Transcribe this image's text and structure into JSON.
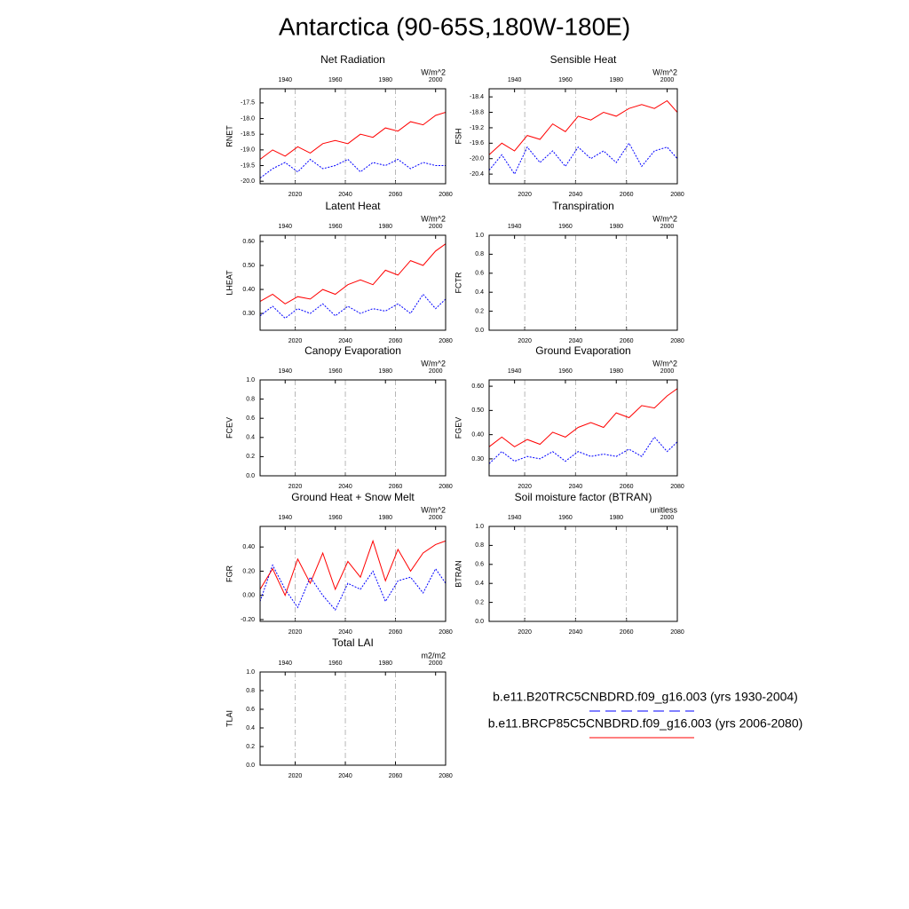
{
  "title": "Antarctica (90-65S,180W-180E)",
  "legend": [
    {
      "label": "b.e11.B20TRC5CNBDRD.f09_g16.003 (yrs 1930-2004)",
      "color": "#0000ff",
      "line_style": "dashed"
    },
    {
      "label": "b.e11.BRCP85C5CNBDRD.f09_g16.003 (yrs 2006-2080)",
      "color": "#ff0000",
      "line_style": "solid"
    }
  ],
  "chart_data": [
    {
      "type": "line",
      "title": "Net Radiation",
      "y_label": "RNET",
      "units": "W/m^2",
      "xlim": [
        2006,
        2080
      ],
      "xticks": [
        2020,
        2040,
        2060,
        2080
      ],
      "x2lim": [
        1930,
        2004
      ],
      "x2ticks": [
        1940,
        1960,
        1980,
        2000
      ],
      "ylim": [
        -20.08,
        -17.05
      ],
      "yticks": [
        -17.5,
        {
          "value": -18.0,
          "label": "-18.0"
        },
        -18.5,
        {
          "value": -19.0,
          "label": "-19.0"
        },
        -19.5,
        {
          "value": -20.0,
          "label": "-20.0"
        }
      ],
      "grid": true,
      "series": [
        {
          "color": "#0000ff",
          "line_style": "dashed",
          "axis": "x2",
          "x": [
            1930,
            1935,
            1940,
            1945,
            1950,
            1955,
            1960,
            1965,
            1970,
            1975,
            1980,
            1985,
            1990,
            1995,
            2000,
            2004
          ],
          "values": [
            -19.9,
            -19.6,
            -19.4,
            -19.7,
            -19.3,
            -19.6,
            -19.5,
            -19.3,
            -19.7,
            -19.4,
            -19.5,
            -19.3,
            -19.6,
            -19.4,
            -19.5,
            -19.5
          ]
        },
        {
          "color": "#ff0000",
          "line_style": "solid",
          "x": [
            2006,
            2011,
            2016,
            2021,
            2026,
            2031,
            2036,
            2041,
            2046,
            2051,
            2056,
            2061,
            2066,
            2071,
            2076,
            2080
          ],
          "values": [
            -19.3,
            -19.0,
            -19.2,
            -18.9,
            -19.1,
            -18.8,
            -18.7,
            -18.8,
            -18.5,
            -18.6,
            -18.3,
            -18.4,
            -18.1,
            -18.2,
            -17.9,
            -17.8
          ]
        }
      ]
    },
    {
      "type": "line",
      "title": "Sensible Heat",
      "y_label": "FSH",
      "units": "W/m^2",
      "xlim": [
        2006,
        2080
      ],
      "xticks": [
        2020,
        2040,
        2060,
        2080
      ],
      "x2lim": [
        1930,
        2004
      ],
      "x2ticks": [
        1940,
        1960,
        1980,
        2000
      ],
      "ylim": [
        -20.65,
        -18.19
      ],
      "yticks": [
        -18.4,
        -18.8,
        -19.2,
        -19.6,
        {
          "value": -20.0,
          "label": "-20.0"
        },
        -20.4
      ],
      "grid": true,
      "series": [
        {
          "color": "#0000ff",
          "line_style": "dashed",
          "axis": "x2",
          "x": [
            1930,
            1935,
            1940,
            1945,
            1950,
            1955,
            1960,
            1965,
            1970,
            1975,
            1980,
            1985,
            1990,
            1995,
            2000,
            2004
          ],
          "values": [
            -20.3,
            -19.9,
            -20.4,
            -19.7,
            -20.1,
            -19.8,
            -20.2,
            -19.7,
            -20.0,
            -19.8,
            -20.1,
            -19.6,
            -20.2,
            -19.8,
            -19.7,
            -20.0
          ]
        },
        {
          "color": "#ff0000",
          "line_style": "solid",
          "x": [
            2006,
            2011,
            2016,
            2021,
            2026,
            2031,
            2036,
            2041,
            2046,
            2051,
            2056,
            2061,
            2066,
            2071,
            2076,
            2080
          ],
          "values": [
            -19.9,
            -19.6,
            -19.8,
            -19.4,
            -19.5,
            -19.1,
            -19.3,
            -18.9,
            -19.0,
            -18.8,
            -18.9,
            -18.7,
            -18.6,
            -18.7,
            -18.5,
            -18.8
          ]
        }
      ]
    },
    {
      "type": "line",
      "title": "Latent Heat",
      "y_label": "LHEAT",
      "units": "W/m^2",
      "xlim": [
        2006,
        2080
      ],
      "xticks": [
        2020,
        2040,
        2060,
        2080
      ],
      "x2lim": [
        1930,
        2004
      ],
      "x2ticks": [
        1940,
        1960,
        1980,
        2000
      ],
      "ylim": [
        0.23,
        0.626
      ],
      "yticks": [
        {
          "value": 0.6,
          "label": "0.60"
        },
        {
          "value": 0.5,
          "label": "0.50"
        },
        {
          "value": 0.4,
          "label": "0.40"
        },
        {
          "value": 0.3,
          "label": "0.30"
        }
      ],
      "grid": true,
      "series": [
        {
          "color": "#0000ff",
          "line_style": "dashed",
          "axis": "x2",
          "x": [
            1930,
            1935,
            1940,
            1945,
            1950,
            1955,
            1960,
            1965,
            1970,
            1975,
            1980,
            1985,
            1990,
            1995,
            2000,
            2004
          ],
          "values": [
            0.29,
            0.33,
            0.28,
            0.32,
            0.3,
            0.34,
            0.29,
            0.33,
            0.3,
            0.32,
            0.31,
            0.34,
            0.3,
            0.38,
            0.32,
            0.36
          ]
        },
        {
          "color": "#ff0000",
          "line_style": "solid",
          "x": [
            2006,
            2011,
            2016,
            2021,
            2026,
            2031,
            2036,
            2041,
            2046,
            2051,
            2056,
            2061,
            2066,
            2071,
            2076,
            2080
          ],
          "values": [
            0.35,
            0.38,
            0.34,
            0.37,
            0.36,
            0.4,
            0.38,
            0.42,
            0.44,
            0.42,
            0.48,
            0.46,
            0.52,
            0.5,
            0.56,
            0.59
          ]
        }
      ]
    },
    {
      "type": "line",
      "title": "Transpiration",
      "y_label": "FCTR",
      "units": "W/m^2",
      "xlim": [
        2006,
        2080
      ],
      "xticks": [
        2020,
        2040,
        2060,
        2080
      ],
      "x2lim": [
        1930,
        2004
      ],
      "x2ticks": [
        1940,
        1960,
        1980,
        2000
      ],
      "ylim": [
        0,
        1
      ],
      "yticks": [
        {
          "value": 1,
          "label": "1.0"
        },
        0.8,
        0.6,
        0.4,
        0.2,
        {
          "value": 0,
          "label": "0.0"
        }
      ],
      "grid": true,
      "series": [
        {
          "color": "#0000ff",
          "line_style": "dashed",
          "axis": "x2",
          "x": [
            1930,
            2004
          ],
          "values": [
            0,
            0
          ]
        },
        {
          "color": "#ff0000",
          "line_style": "solid",
          "x": [
            2006,
            2080
          ],
          "values": [
            0,
            0
          ]
        }
      ]
    },
    {
      "type": "line",
      "title": "Canopy Evaporation",
      "y_label": "FCEV",
      "units": "W/m^2",
      "xlim": [
        2006,
        2080
      ],
      "xticks": [
        2020,
        2040,
        2060,
        2080
      ],
      "x2lim": [
        1930,
        2004
      ],
      "x2ticks": [
        1940,
        1960,
        1980,
        2000
      ],
      "ylim": [
        0,
        1
      ],
      "yticks": [
        {
          "value": 1,
          "label": "1.0"
        },
        0.8,
        0.6,
        0.4,
        0.2,
        {
          "value": 0,
          "label": "0.0"
        }
      ],
      "grid": true,
      "series": [
        {
          "color": "#0000ff",
          "line_style": "dashed",
          "axis": "x2",
          "x": [
            1930,
            2004
          ],
          "values": [
            0,
            0
          ]
        },
        {
          "color": "#ff0000",
          "line_style": "solid",
          "x": [
            2006,
            2080
          ],
          "values": [
            0,
            0
          ]
        }
      ]
    },
    {
      "type": "line",
      "title": "Ground Evaporation",
      "y_label": "FGEV",
      "units": "W/m^2",
      "xlim": [
        2006,
        2080
      ],
      "xticks": [
        2020,
        2040,
        2060,
        2080
      ],
      "x2lim": [
        1930,
        2004
      ],
      "x2ticks": [
        1940,
        1960,
        1980,
        2000
      ],
      "ylim": [
        0.23,
        0.626
      ],
      "yticks": [
        {
          "value": 0.6,
          "label": "0.60"
        },
        {
          "value": 0.5,
          "label": "0.50"
        },
        {
          "value": 0.4,
          "label": "0.40"
        },
        {
          "value": 0.3,
          "label": "0.30"
        }
      ],
      "grid": true,
      "series": [
        {
          "color": "#0000ff",
          "line_style": "dashed",
          "axis": "x2",
          "x": [
            1930,
            1935,
            1940,
            1945,
            1950,
            1955,
            1960,
            1965,
            1970,
            1975,
            1980,
            1985,
            1990,
            1995,
            2000,
            2004
          ],
          "values": [
            0.28,
            0.33,
            0.29,
            0.31,
            0.3,
            0.33,
            0.29,
            0.33,
            0.31,
            0.32,
            0.31,
            0.34,
            0.31,
            0.39,
            0.33,
            0.37
          ]
        },
        {
          "color": "#ff0000",
          "line_style": "solid",
          "x": [
            2006,
            2011,
            2016,
            2021,
            2026,
            2031,
            2036,
            2041,
            2046,
            2051,
            2056,
            2061,
            2066,
            2071,
            2076,
            2080
          ],
          "values": [
            0.35,
            0.39,
            0.35,
            0.38,
            0.36,
            0.41,
            0.39,
            0.43,
            0.45,
            0.43,
            0.49,
            0.47,
            0.52,
            0.51,
            0.56,
            0.59
          ]
        }
      ]
    },
    {
      "type": "line",
      "title": "Ground Heat + Snow Melt",
      "y_label": "FGR",
      "units": "W/m^2",
      "xlim": [
        2006,
        2080
      ],
      "xticks": [
        2020,
        2040,
        2060,
        2080
      ],
      "x2lim": [
        1930,
        2004
      ],
      "x2ticks": [
        1940,
        1960,
        1980,
        2000
      ],
      "ylim": [
        -0.215,
        0.57
      ],
      "yticks": [
        {
          "value": 0.4,
          "label": "0.40"
        },
        {
          "value": 0.2,
          "label": "0.20"
        },
        {
          "value": 0,
          "label": "0.00"
        },
        {
          "value": -0.2,
          "label": "-0.20"
        }
      ],
      "grid": true,
      "series": [
        {
          "color": "#0000ff",
          "line_style": "dashed",
          "axis": "x2",
          "x": [
            1930,
            1935,
            1940,
            1945,
            1950,
            1955,
            1960,
            1965,
            1970,
            1975,
            1980,
            1985,
            1990,
            1995,
            2000,
            2004
          ],
          "values": [
            -0.05,
            0.25,
            0.05,
            -0.1,
            0.15,
            0,
            -0.12,
            0.1,
            0.05,
            0.2,
            -0.05,
            0.12,
            0.15,
            0.02,
            0.22,
            0.1
          ]
        },
        {
          "color": "#ff0000",
          "line_style": "solid",
          "x": [
            2006,
            2011,
            2016,
            2021,
            2026,
            2031,
            2036,
            2041,
            2046,
            2051,
            2056,
            2061,
            2066,
            2071,
            2076,
            2080
          ],
          "values": [
            0.05,
            0.22,
            0,
            0.3,
            0.1,
            0.35,
            0.05,
            0.28,
            0.15,
            0.45,
            0.12,
            0.38,
            0.2,
            0.35,
            0.42,
            0.45
          ]
        }
      ]
    },
    {
      "type": "line",
      "title": "Soil moisture factor (BTRAN)",
      "y_label": "BTRAN",
      "units": "unitless",
      "xlim": [
        2006,
        2080
      ],
      "xticks": [
        2020,
        2040,
        2060,
        2080
      ],
      "x2lim": [
        1930,
        2004
      ],
      "x2ticks": [
        1940,
        1960,
        1980,
        2000
      ],
      "ylim": [
        0,
        1
      ],
      "yticks": [
        {
          "value": 1,
          "label": "1.0"
        },
        0.8,
        0.6,
        0.4,
        0.2,
        {
          "value": 0,
          "label": "0.0"
        }
      ],
      "grid": true,
      "series": [
        {
          "color": "#0000ff",
          "line_style": "dashed",
          "axis": "x2",
          "x": [
            1930,
            2004
          ],
          "values": [
            0,
            0
          ]
        },
        {
          "color": "#ff0000",
          "line_style": "solid",
          "x": [
            2006,
            2080
          ],
          "values": [
            0,
            0
          ]
        }
      ]
    },
    {
      "type": "line",
      "title": "Total LAI",
      "y_label": "TLAI",
      "units": "m2/m2",
      "xlim": [
        2006,
        2080
      ],
      "xticks": [
        2020,
        2040,
        2060,
        2080
      ],
      "x2lim": [
        1930,
        2004
      ],
      "x2ticks": [
        1940,
        1960,
        1980,
        2000
      ],
      "ylim": [
        0,
        1
      ],
      "yticks": [
        {
          "value": 1,
          "label": "1.0"
        },
        0.8,
        0.6,
        0.4,
        0.2,
        {
          "value": 0,
          "label": "0.0"
        }
      ],
      "grid": true,
      "series": [
        {
          "color": "#0000ff",
          "line_style": "dashed",
          "axis": "x2",
          "x": [
            1930,
            2004
          ],
          "values": [
            0,
            0
          ]
        },
        {
          "color": "#ff0000",
          "line_style": "solid",
          "x": [
            2006,
            2080
          ],
          "values": [
            0,
            0
          ]
        }
      ]
    }
  ]
}
